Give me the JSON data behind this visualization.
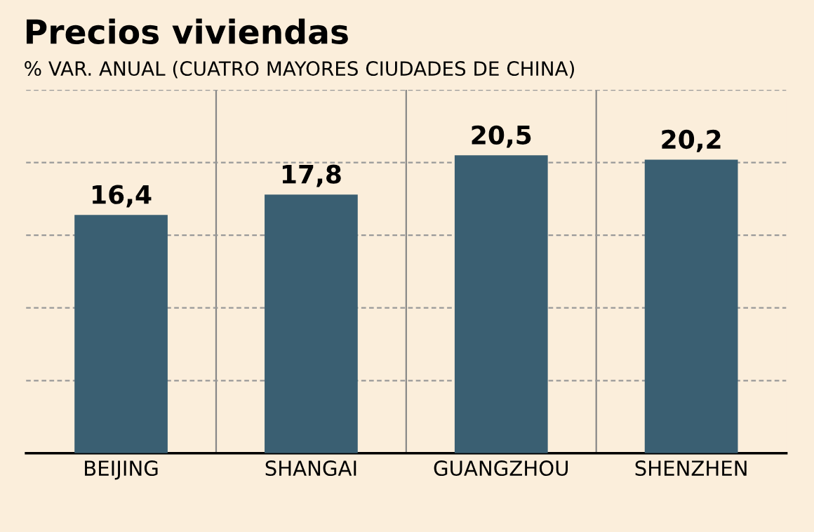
{
  "chart_data": {
    "type": "bar",
    "title": "Precios viviendas",
    "subtitle": "% VAR. ANUAL (CUATRO MAYORES CIUDADES DE CHINA)",
    "categories": [
      "BEIJING",
      "SHANGAI",
      "GUANGZHOU",
      "SHENZHEN"
    ],
    "values": [
      16.4,
      17.8,
      20.5,
      20.2
    ],
    "value_labels": [
      "16,4",
      "17,8",
      "20,5",
      "20,2"
    ],
    "color": "#3a5f72",
    "ylim": [
      0,
      25
    ],
    "yticks": [
      {
        "value": 5,
        "label": null
      },
      {
        "value": 10,
        "label": null
      },
      {
        "value": 15,
        "label": null
      },
      {
        "value": 20,
        "label": null
      },
      {
        "value": 25,
        "label": null
      }
    ],
    "tick_labels": "x",
    "grid": true,
    "legend": false
  }
}
